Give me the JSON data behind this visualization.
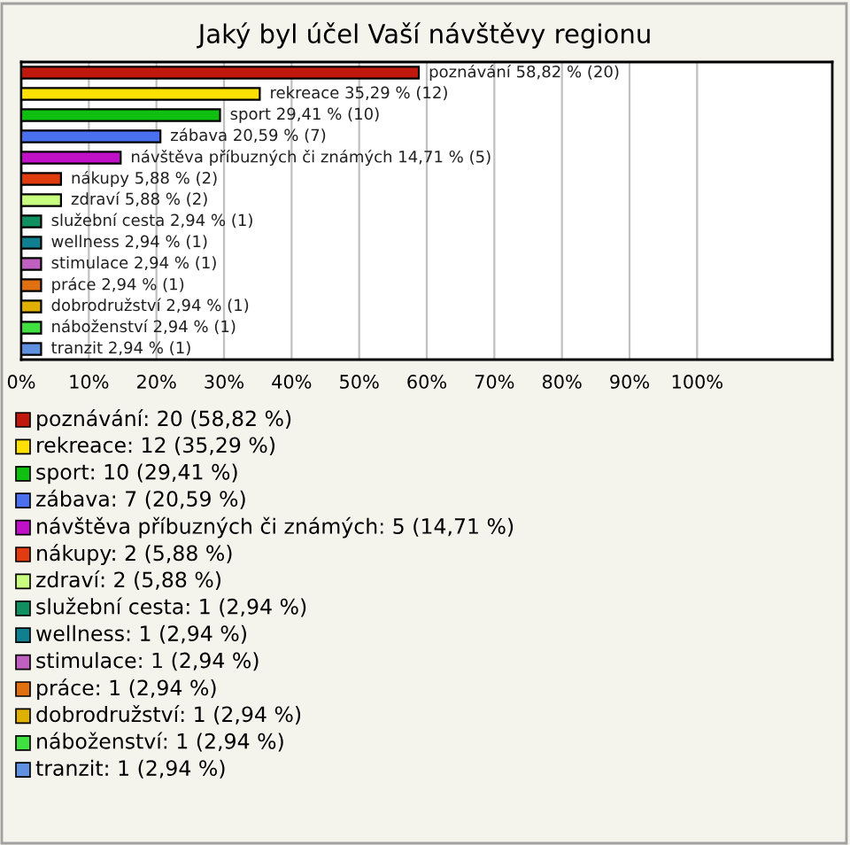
{
  "chart_data": {
    "type": "bar",
    "orientation": "horizontal",
    "title": "Jaký byl účel Vaší návštěvy regionu",
    "categories": [
      null,
      null,
      null,
      null,
      null,
      null,
      null,
      null,
      null,
      null,
      null,
      null,
      null,
      null
    ],
    "values": [
      58.82,
      35.29,
      29.41,
      20.59,
      14.71,
      5.88,
      5.88,
      2.94,
      2.94,
      2.94,
      2.94,
      2.94,
      2.94,
      2.94
    ],
    "colors": [
      "#c0180c",
      "#ffe000",
      "#10c010",
      "#4a70f0",
      "#c010c8",
      "#e03c10",
      "#c8ff80",
      "#109060",
      "#108090",
      "#c060c0",
      "#e07010",
      "#e0b000",
      "#40e040",
      "#6090e0"
    ],
    "value_labels": [
      "poznávání 58,82 % (20)",
      "rekreace 35,29 % (12)",
      "sport 29,41 % (10)",
      "zábava 20,59 % (7)",
      "návštěva příbuzných či známých 14,71 % (5)",
      "nákupy 5,88 % (2)",
      "zdraví 5,88 % (2)",
      "služební cesta 2,94 % (1)",
      "wellness 2,94 % (1)",
      "stimulace 2,94 % (1)",
      "práce 2,94 % (1)",
      "dobrodružství 2,94 % (1)",
      "náboženství 2,94 % (1)",
      "tranzit 2,94 % (1)"
    ],
    "annotations": [
      "poznávání: 20 (58,82 %)",
      "rekreace: 12 (35,29 %)",
      "sport: 10 (29,41 %)",
      "zábava: 7 (20,59 %)",
      "návštěva příbuzných či známých: 5 (14,71 %)",
      "nákupy: 2 (5,88 %)",
      "zdraví: 2 (5,88 %)",
      "služební cesta: 1 (2,94 %)",
      "wellness: 1 (2,94 %)",
      "stimulace: 1 (2,94 %)",
      "práce: 1 (2,94 %)",
      "dobrodružství: 1 (2,94 %)",
      "náboženství: 1 (2,94 %)",
      "tranzit: 1 (2,94 %)"
    ],
    "xlim": [
      0,
      120
    ],
    "xticks": [
      {
        "value": 0,
        "label": "0%"
      },
      {
        "value": 10,
        "label": "10%"
      },
      {
        "value": 20,
        "label": "20%"
      },
      {
        "value": 30,
        "label": "30%"
      },
      {
        "value": 40,
        "label": "40%"
      },
      {
        "value": 50,
        "label": "50%"
      },
      {
        "value": 60,
        "label": "60%"
      },
      {
        "value": 70,
        "label": "70%"
      },
      {
        "value": 80,
        "label": "80%"
      },
      {
        "value": 90,
        "label": "90%"
      },
      {
        "value": 100,
        "label": "100%"
      }
    ],
    "grid": "x"
  }
}
